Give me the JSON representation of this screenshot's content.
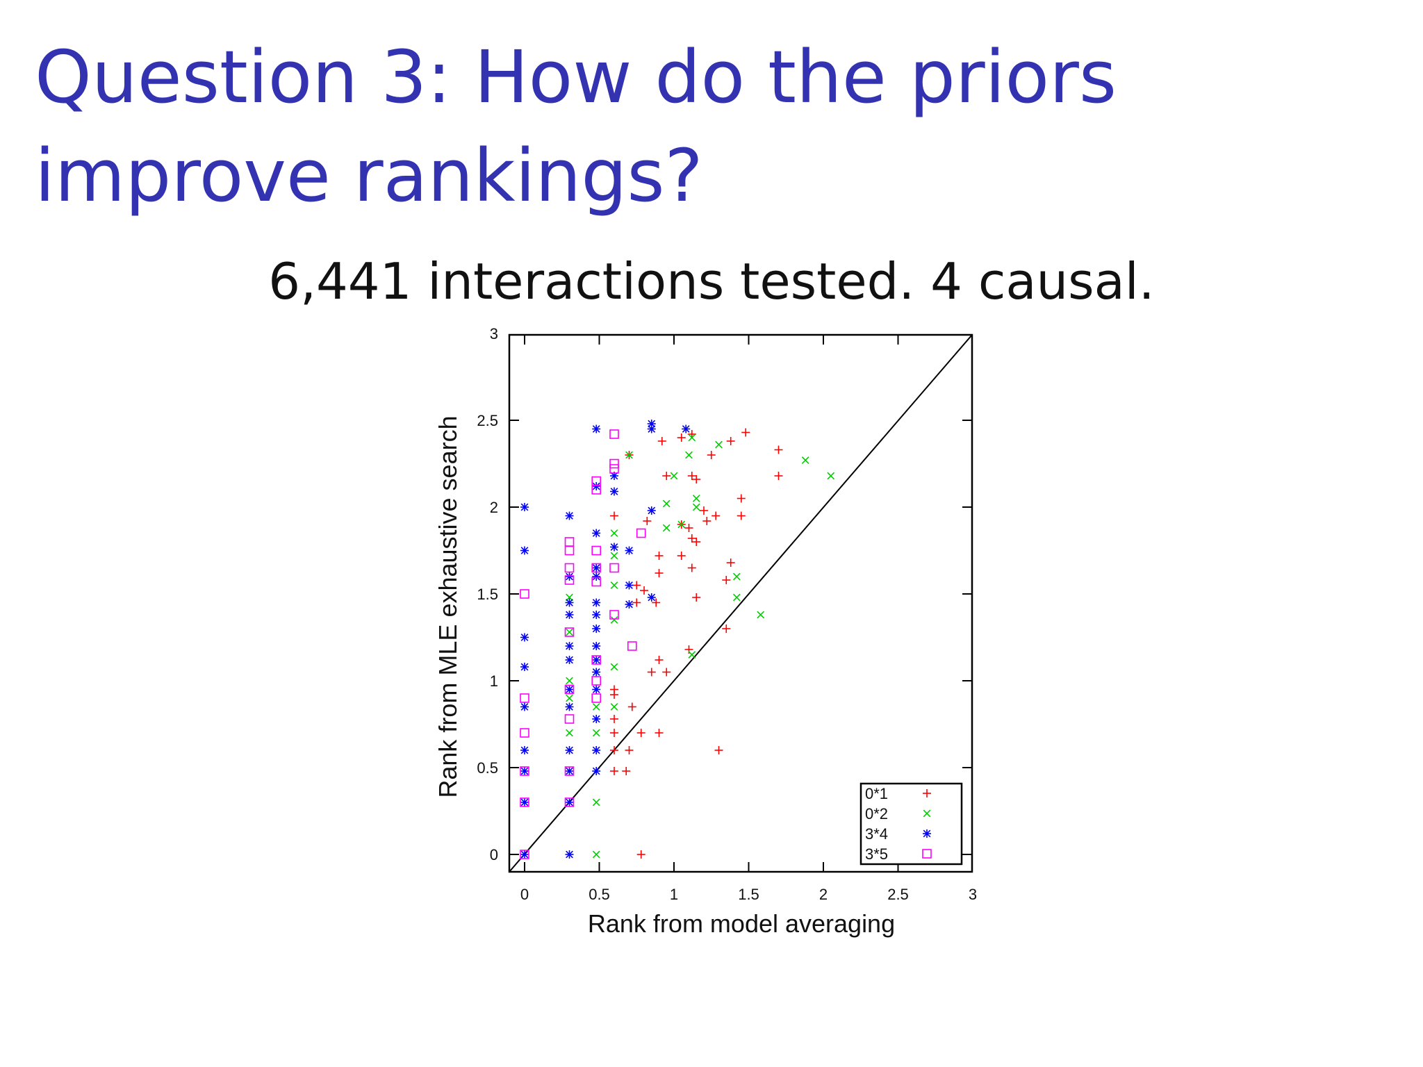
{
  "slide": {
    "title": "Question 3: How do the priors improve rankings?",
    "subtitle": "6,441 interactions tested. 4 causal."
  },
  "chart_data": {
    "type": "scatter",
    "xlabel": "Rank from model averaging",
    "ylabel": "Rank from MLE exhaustive search",
    "xlim": [
      0,
      3
    ],
    "ylim": [
      0,
      3
    ],
    "xticks": [
      "0",
      "0.5",
      "1",
      "1.5",
      "2",
      "2.5",
      "3"
    ],
    "yticks": [
      "0",
      "0.5",
      "1",
      "1.5",
      "2",
      "2.5",
      "3"
    ],
    "grid": false,
    "diagonal_line": true,
    "legend_position": "bottom-right",
    "series": [
      {
        "name": "0*1",
        "marker": "plus",
        "color": "#ff0000",
        "points": [
          [
            0.78,
            0
          ],
          [
            0.6,
            0.48
          ],
          [
            0.68,
            0.48
          ],
          [
            0.7,
            0.6
          ],
          [
            0.6,
            0.6
          ],
          [
            0.78,
            0.7
          ],
          [
            0.9,
            0.7
          ],
          [
            1.3,
            0.6
          ],
          [
            0.6,
            0.7
          ],
          [
            0.6,
            0.78
          ],
          [
            0.72,
            0.85
          ],
          [
            0.6,
            0.92
          ],
          [
            0.6,
            0.95
          ],
          [
            0.85,
            1.05
          ],
          [
            0.95,
            1.05
          ],
          [
            0.9,
            1.12
          ],
          [
            1.1,
            1.18
          ],
          [
            1.35,
            1.3
          ],
          [
            0.88,
            1.45
          ],
          [
            0.75,
            1.45
          ],
          [
            0.8,
            1.52
          ],
          [
            1.15,
            1.48
          ],
          [
            1.35,
            1.58
          ],
          [
            0.75,
            1.55
          ],
          [
            0.9,
            1.62
          ],
          [
            1.12,
            1.65
          ],
          [
            1.38,
            1.68
          ],
          [
            1.05,
            1.72
          ],
          [
            0.9,
            1.72
          ],
          [
            1.15,
            1.8
          ],
          [
            1.12,
            1.82
          ],
          [
            1.05,
            1.9
          ],
          [
            1.22,
            1.92
          ],
          [
            1.1,
            1.88
          ],
          [
            1.28,
            1.95
          ],
          [
            1.45,
            1.95
          ],
          [
            0.82,
            1.92
          ],
          [
            1.2,
            1.98
          ],
          [
            0.6,
            1.95
          ],
          [
            1.45,
            2.05
          ],
          [
            1.15,
            2.16
          ],
          [
            1.12,
            2.18
          ],
          [
            0.95,
            2.18
          ],
          [
            1.7,
            2.18
          ],
          [
            1.25,
            2.3
          ],
          [
            0.7,
            2.3
          ],
          [
            0.92,
            2.38
          ],
          [
            1.05,
            2.4
          ],
          [
            1.12,
            2.42
          ],
          [
            1.38,
            2.38
          ],
          [
            1.48,
            2.43
          ],
          [
            1.7,
            2.33
          ]
        ]
      },
      {
        "name": "0*2",
        "marker": "x",
        "color": "#00cc00",
        "points": [
          [
            0.48,
            0
          ],
          [
            0.48,
            0.3
          ],
          [
            0.3,
            0.7
          ],
          [
            0.48,
            0.7
          ],
          [
            0.6,
            0.85
          ],
          [
            0.48,
            0.85
          ],
          [
            0.3,
            0.9
          ],
          [
            0.3,
            1.0
          ],
          [
            0.6,
            1.08
          ],
          [
            0.48,
            1.05
          ],
          [
            1.12,
            1.15
          ],
          [
            0.3,
            1.28
          ],
          [
            0.6,
            1.35
          ],
          [
            0.3,
            1.48
          ],
          [
            0.6,
            1.55
          ],
          [
            1.42,
            1.48
          ],
          [
            1.58,
            1.38
          ],
          [
            1.42,
            1.6
          ],
          [
            0.6,
            1.72
          ],
          [
            0.6,
            1.85
          ],
          [
            0.95,
            1.88
          ],
          [
            1.05,
            1.9
          ],
          [
            1.15,
            2.0
          ],
          [
            0.95,
            2.02
          ],
          [
            1.15,
            2.05
          ],
          [
            1.0,
            2.18
          ],
          [
            1.1,
            2.3
          ],
          [
            1.3,
            2.36
          ],
          [
            1.12,
            2.4
          ],
          [
            0.7,
            2.3
          ],
          [
            1.88,
            2.27
          ],
          [
            2.05,
            2.18
          ]
        ]
      },
      {
        "name": "3*4",
        "marker": "star",
        "color": "#0000ff",
        "points": [
          [
            0,
            0
          ],
          [
            0.3,
            0
          ],
          [
            0.48,
            0.48
          ],
          [
            0,
            0.3
          ],
          [
            0.3,
            0.3
          ],
          [
            0,
            0.48
          ],
          [
            0.3,
            0.48
          ],
          [
            0,
            0.6
          ],
          [
            0.3,
            0.6
          ],
          [
            0.48,
            0.6
          ],
          [
            0,
            0.85
          ],
          [
            0.3,
            0.85
          ],
          [
            0.48,
            0.78
          ],
          [
            0.48,
            0.95
          ],
          [
            0.3,
            0.95
          ],
          [
            0,
            1.08
          ],
          [
            0.3,
            1.12
          ],
          [
            0.48,
            1.12
          ],
          [
            0.48,
            1.05
          ],
          [
            0,
            1.25
          ],
          [
            0.3,
            1.2
          ],
          [
            0.48,
            1.2
          ],
          [
            0.48,
            1.3
          ],
          [
            0.3,
            1.38
          ],
          [
            0.48,
            1.38
          ],
          [
            0.48,
            1.45
          ],
          [
            0.3,
            1.45
          ],
          [
            0.7,
            1.44
          ],
          [
            0.7,
            1.55
          ],
          [
            0.48,
            1.6
          ],
          [
            0.3,
            1.6
          ],
          [
            0.48,
            1.65
          ],
          [
            0,
            1.75
          ],
          [
            0.6,
            1.77
          ],
          [
            0.7,
            1.75
          ],
          [
            0.48,
            1.85
          ],
          [
            0.3,
            1.95
          ],
          [
            0,
            2.0
          ],
          [
            0.85,
            1.48
          ],
          [
            0.85,
            1.98
          ],
          [
            0.6,
            2.09
          ],
          [
            0.48,
            2.12
          ],
          [
            0.6,
            2.18
          ],
          [
            0.48,
            2.45
          ],
          [
            0.85,
            2.48
          ],
          [
            0.85,
            2.45
          ],
          [
            1.08,
            2.45
          ]
        ]
      },
      {
        "name": "3*5",
        "marker": "square",
        "color": "#ff00ff",
        "points": [
          [
            0,
            0
          ],
          [
            0,
            0.3
          ],
          [
            0.3,
            0.3
          ],
          [
            0,
            0.48
          ],
          [
            0.3,
            0.48
          ],
          [
            0,
            0.7
          ],
          [
            0.3,
            0.78
          ],
          [
            0,
            0.9
          ],
          [
            0.3,
            0.95
          ],
          [
            0.48,
            0.9
          ],
          [
            0.48,
            1.0
          ],
          [
            0.48,
            1.12
          ],
          [
            0.3,
            1.28
          ],
          [
            0.72,
            1.2
          ],
          [
            0.6,
            1.38
          ],
          [
            0,
            1.5
          ],
          [
            0.3,
            1.58
          ],
          [
            0.48,
            1.57
          ],
          [
            0.3,
            1.65
          ],
          [
            0.48,
            1.65
          ],
          [
            0.6,
            1.65
          ],
          [
            0.48,
            1.75
          ],
          [
            0.3,
            1.75
          ],
          [
            0.3,
            1.8
          ],
          [
            0.78,
            1.85
          ],
          [
            0.48,
            2.1
          ],
          [
            0.48,
            2.15
          ],
          [
            0.6,
            2.22
          ],
          [
            0.6,
            2.25
          ],
          [
            0.6,
            2.42
          ]
        ]
      }
    ]
  }
}
